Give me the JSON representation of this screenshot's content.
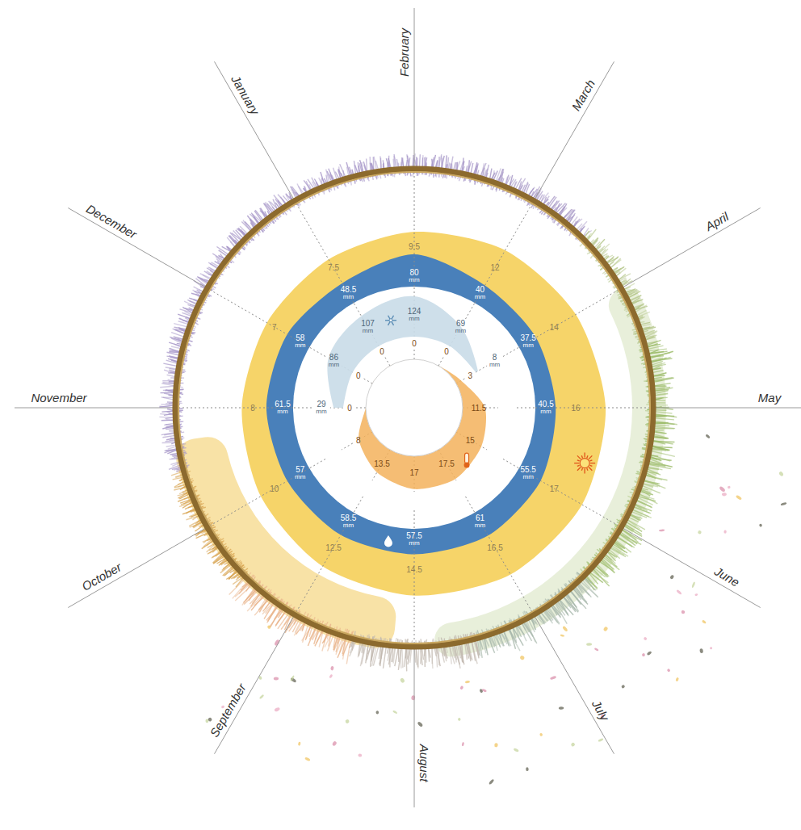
{
  "chart_data": {
    "type": "radial",
    "categories": [
      "January",
      "February",
      "March",
      "April",
      "May",
      "June",
      "July",
      "August",
      "September",
      "October",
      "November",
      "December"
    ],
    "data_labels": true,
    "series": [
      {
        "type": "area",
        "color": "#f5cc4f",
        "values": [
          7.5,
          9.5,
          12,
          14,
          16,
          17,
          16.5,
          14.5,
          12.5,
          10,
          8,
          7
        ]
      },
      {
        "type": "area",
        "color": "#3a78c1",
        "values": [
          48.5,
          80,
          40,
          37.5,
          40.5,
          55.5,
          61,
          57.5,
          58.5,
          57,
          61.5,
          58
        ],
        "value_labels": [
          "48.5 mm",
          "80 mm",
          "40 mm",
          "37.5 mm",
          "40.5 mm",
          "55.5 mm",
          "61 mm",
          "57.5 mm",
          "58.5 mm",
          "57 mm",
          "61.5 mm",
          "58 mm"
        ]
      },
      {
        "type": "area",
        "color": "#c9dce8",
        "values": [
          107,
          124,
          69,
          8,
          null,
          null,
          null,
          null,
          null,
          null,
          29,
          86
        ],
        "value_labels": [
          "107 mm",
          "124 mm",
          "69 mm",
          "8 mm",
          null,
          null,
          null,
          null,
          null,
          null,
          "29 mm",
          "86 mm"
        ]
      },
      {
        "type": "area",
        "color": "#f3b25c",
        "values": [
          0,
          0,
          0,
          3,
          11.5,
          15,
          17.5,
          17,
          13.5,
          8,
          0,
          0
        ]
      }
    ]
  }
}
